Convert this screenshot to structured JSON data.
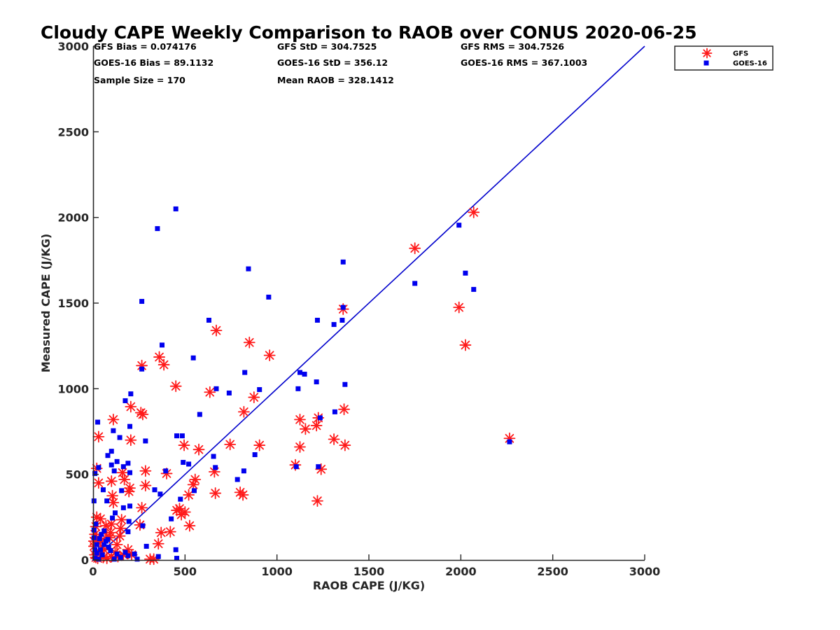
{
  "chart_data": {
    "type": "scatter",
    "title": "Cloudy CAPE Weekly Comparison to RAOB over CONUS 2020-06-25",
    "xlabel": "RAOB CAPE (J/KG)",
    "ylabel": "Measured CAPE (J/KG)",
    "xlim": [
      0,
      3000
    ],
    "ylim": [
      0,
      3000
    ],
    "xticks": [
      "0",
      "500",
      "1000",
      "1500",
      "2000",
      "2500",
      "3000"
    ],
    "yticks": [
      "0",
      "500",
      "1000",
      "1500",
      "2000",
      "2500",
      "3000"
    ],
    "grid": false,
    "legend_position": "top-right",
    "stats": [
      "GFS Bias = 0.074176",
      "GOES-16 Bias = 89.1132",
      "Sample Size = 170",
      "GFS StD = 304.7525",
      "GOES-16 StD = 356.12",
      "Mean RAOB = 328.1412",
      "GFS RMS = 304.7526",
      "GOES-16 RMS = 367.1003"
    ],
    "reference_line": {
      "x": [
        0,
        3000
      ],
      "y": [
        0,
        3000
      ],
      "color": "#0000cc"
    },
    "series": [
      {
        "name": "GFS",
        "marker": "asterisk",
        "color": "#ff1a1a",
        "points": [
          [
            2070,
            2030
          ],
          [
            1750,
            1820
          ],
          [
            1990,
            1475
          ],
          [
            2025,
            1255
          ],
          [
            2265,
            710
          ],
          [
            1360,
            1465
          ],
          [
            1365,
            880
          ],
          [
            1370,
            670
          ],
          [
            1310,
            705
          ],
          [
            1240,
            530
          ],
          [
            1220,
            345
          ],
          [
            1225,
            830
          ],
          [
            1215,
            785
          ],
          [
            1155,
            765
          ],
          [
            1125,
            820
          ],
          [
            1125,
            660
          ],
          [
            1100,
            555
          ],
          [
            960,
            1195
          ],
          [
            850,
            1270
          ],
          [
            875,
            950
          ],
          [
            905,
            670
          ],
          [
            820,
            865
          ],
          [
            800,
            395
          ],
          [
            815,
            380
          ],
          [
            745,
            675
          ],
          [
            670,
            1340
          ],
          [
            635,
            980
          ],
          [
            660,
            515
          ],
          [
            665,
            390
          ],
          [
            575,
            645
          ],
          [
            555,
            470
          ],
          [
            545,
            440
          ],
          [
            520,
            380
          ],
          [
            525,
            200
          ],
          [
            495,
            670
          ],
          [
            500,
            280
          ],
          [
            480,
            265
          ],
          [
            470,
            300
          ],
          [
            450,
            1015
          ],
          [
            455,
            290
          ],
          [
            385,
            1140
          ],
          [
            360,
            1185
          ],
          [
            370,
            160
          ],
          [
            355,
            95
          ],
          [
            330,
            5
          ],
          [
            310,
            5
          ],
          [
            400,
            505
          ],
          [
            420,
            165
          ],
          [
            285,
            520
          ],
          [
            265,
            1135
          ],
          [
            260,
            860
          ],
          [
            270,
            850
          ],
          [
            285,
            435
          ],
          [
            265,
            305
          ],
          [
            255,
            205
          ],
          [
            205,
            895
          ],
          [
            205,
            700
          ],
          [
            200,
            420
          ],
          [
            195,
            400
          ],
          [
            190,
            60
          ],
          [
            210,
            30
          ],
          [
            170,
            470
          ],
          [
            160,
            510
          ],
          [
            155,
            235
          ],
          [
            150,
            185
          ],
          [
            145,
            140
          ],
          [
            165,
            30
          ],
          [
            110,
            820
          ],
          [
            100,
            460
          ],
          [
            105,
            375
          ],
          [
            110,
            335
          ],
          [
            100,
            210
          ],
          [
            95,
            160
          ],
          [
            90,
            130
          ],
          [
            100,
            20
          ],
          [
            30,
            720
          ],
          [
            20,
            535
          ],
          [
            30,
            450
          ],
          [
            20,
            250
          ],
          [
            15,
            195
          ],
          [
            10,
            150
          ],
          [
            20,
            130
          ],
          [
            30,
            100
          ],
          [
            40,
            110
          ],
          [
            50,
            80
          ],
          [
            60,
            60
          ],
          [
            70,
            200
          ],
          [
            75,
            140
          ],
          [
            120,
            45
          ],
          [
            130,
            90
          ],
          [
            135,
            20
          ],
          [
            35,
            40
          ],
          [
            40,
            240
          ],
          [
            25,
            10
          ],
          [
            55,
            15
          ],
          [
            75,
            10
          ],
          [
            10,
            30
          ],
          [
            5,
            80
          ],
          [
            5,
            110
          ],
          [
            15,
            15
          ]
        ]
      },
      {
        "name": "GOES-16",
        "marker": "square",
        "color": "#0000ee",
        "points": [
          [
            450,
            2050
          ],
          [
            350,
            1935
          ],
          [
            845,
            1700
          ],
          [
            1360,
            1740
          ],
          [
            955,
            1535
          ],
          [
            265,
            1510
          ],
          [
            1990,
            1955
          ],
          [
            2025,
            1675
          ],
          [
            2070,
            1580
          ],
          [
            1750,
            1615
          ],
          [
            1360,
            1475
          ],
          [
            1355,
            1400
          ],
          [
            1310,
            1375
          ],
          [
            1220,
            1400
          ],
          [
            630,
            1400
          ],
          [
            375,
            1255
          ],
          [
            545,
            1180
          ],
          [
            1125,
            1095
          ],
          [
            1150,
            1085
          ],
          [
            825,
            1095
          ],
          [
            1215,
            1040
          ],
          [
            1370,
            1025
          ],
          [
            1115,
            1000
          ],
          [
            905,
            995
          ],
          [
            670,
            1000
          ],
          [
            740,
            975
          ],
          [
            205,
            970
          ],
          [
            265,
            1115
          ],
          [
            175,
            930
          ],
          [
            580,
            850
          ],
          [
            1315,
            865
          ],
          [
            1235,
            830
          ],
          [
            25,
            805
          ],
          [
            200,
            780
          ],
          [
            110,
            755
          ],
          [
            455,
            725
          ],
          [
            485,
            725
          ],
          [
            145,
            715
          ],
          [
            285,
            695
          ],
          [
            2265,
            690
          ],
          [
            100,
            635
          ],
          [
            80,
            610
          ],
          [
            880,
            615
          ],
          [
            655,
            605
          ],
          [
            490,
            570
          ],
          [
            520,
            560
          ],
          [
            190,
            565
          ],
          [
            130,
            575
          ],
          [
            100,
            555
          ],
          [
            165,
            545
          ],
          [
            1225,
            545
          ],
          [
            1105,
            545
          ],
          [
            665,
            540
          ],
          [
            30,
            540
          ],
          [
            395,
            520
          ],
          [
            820,
            520
          ],
          [
            115,
            520
          ],
          [
            200,
            510
          ],
          [
            10,
            505
          ],
          [
            785,
            470
          ],
          [
            55,
            410
          ],
          [
            335,
            410
          ],
          [
            550,
            405
          ],
          [
            155,
            405
          ],
          [
            365,
            385
          ],
          [
            475,
            355
          ],
          [
            75,
            345
          ],
          [
            5,
            345
          ],
          [
            165,
            305
          ],
          [
            200,
            315
          ],
          [
            120,
            275
          ],
          [
            425,
            240
          ],
          [
            105,
            245
          ],
          [
            195,
            225
          ],
          [
            270,
            200
          ],
          [
            15,
            210
          ],
          [
            190,
            165
          ],
          [
            60,
            170
          ],
          [
            5,
            175
          ],
          [
            290,
            80
          ],
          [
            450,
            60
          ],
          [
            190,
            25
          ],
          [
            240,
            5
          ],
          [
            355,
            20
          ],
          [
            455,
            10
          ],
          [
            115,
            5
          ],
          [
            30,
            5
          ],
          [
            20,
            40
          ],
          [
            40,
            60
          ],
          [
            50,
            30
          ],
          [
            60,
            90
          ],
          [
            70,
            110
          ],
          [
            80,
            120
          ],
          [
            5,
            130
          ],
          [
            10,
            60
          ],
          [
            20,
            90
          ],
          [
            35,
            125
          ],
          [
            45,
            150
          ],
          [
            85,
            75
          ],
          [
            95,
            55
          ],
          [
            130,
            35
          ],
          [
            150,
            15
          ],
          [
            175,
            45
          ],
          [
            225,
            35
          ],
          [
            10,
            10
          ]
        ]
      }
    ]
  }
}
